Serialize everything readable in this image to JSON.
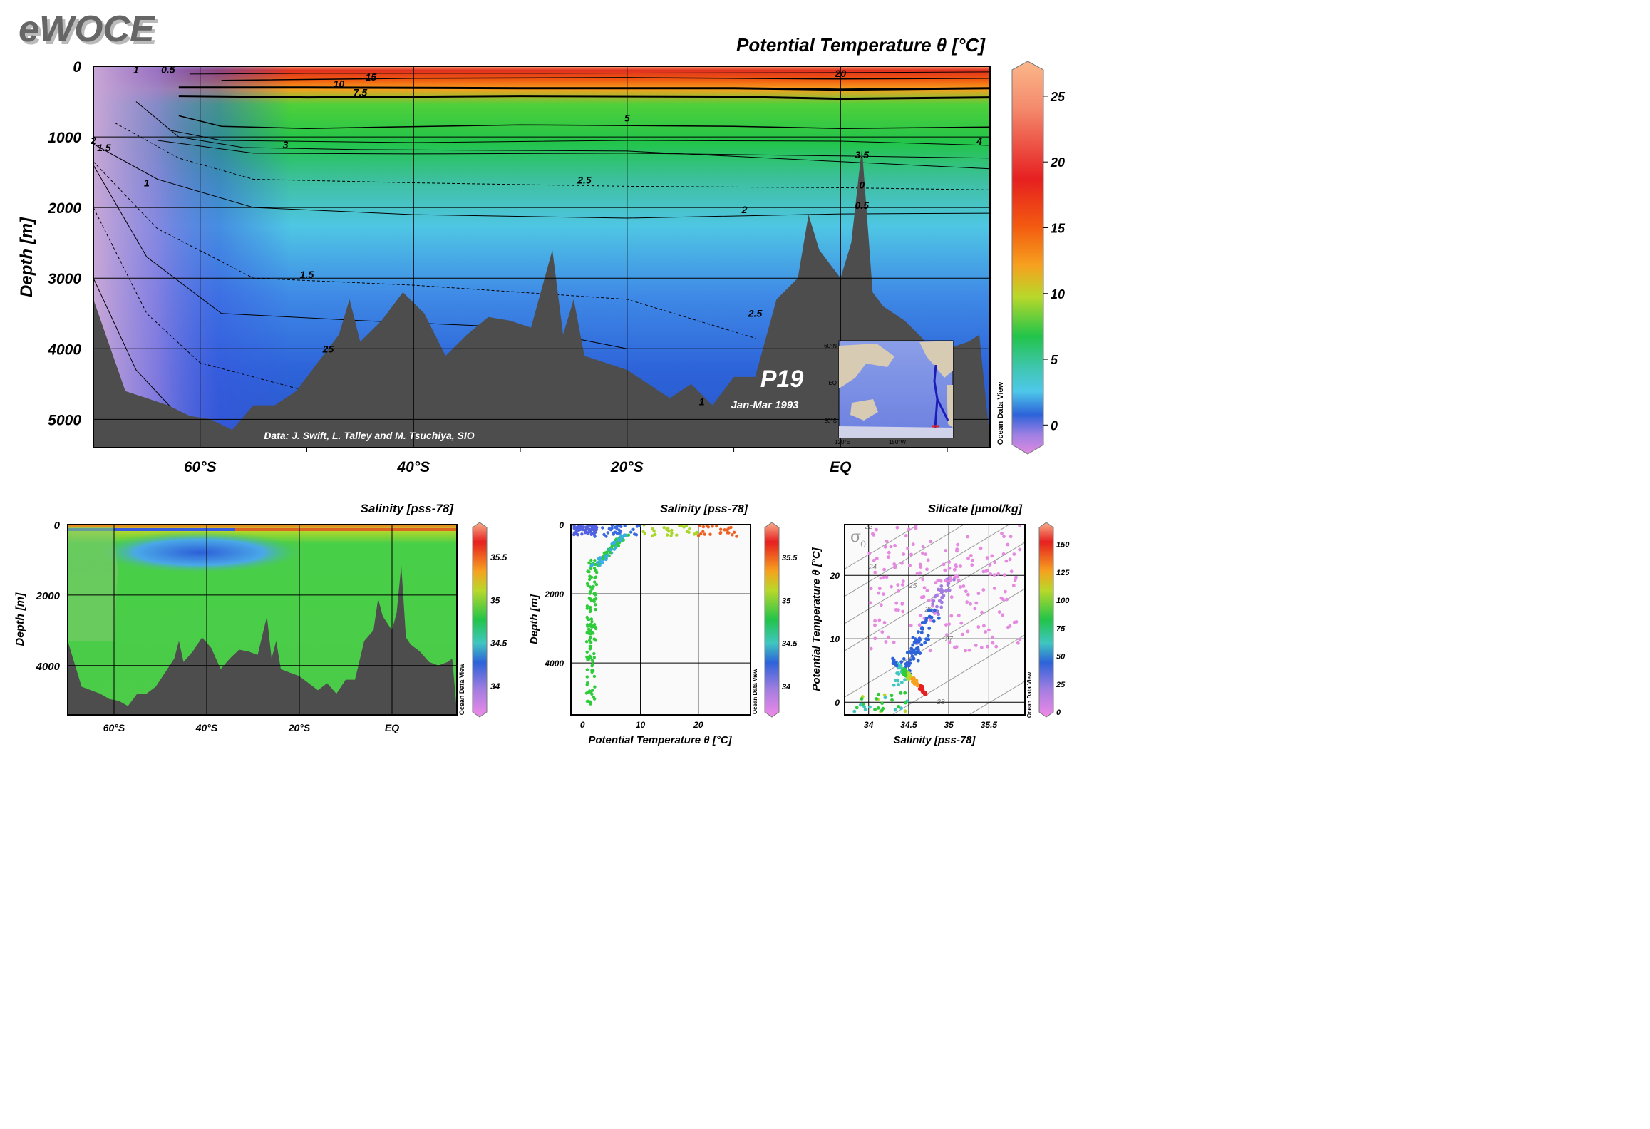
{
  "logo_text": "eWOCE",
  "colors": {
    "seafloor": "#4d4d4d",
    "panel_bg": "#fafafa",
    "frame": "#000000"
  },
  "main_section": {
    "title": "Potential Temperature θ [°C]",
    "ylabel": "Depth [m]",
    "y_ticks": [
      "0",
      "1000",
      "2000",
      "3000",
      "4000",
      "5000"
    ],
    "x_ticks": [
      "60°S",
      "40°S",
      "20°S",
      "EQ"
    ],
    "contour_labels": [
      "20",
      "15",
      "10",
      "7.5",
      "5",
      "4",
      "3.5",
      "3",
      "2.5",
      "2",
      "1.5",
      "1",
      "0.5",
      "0",
      "1.5",
      "2",
      "1",
      "2.5",
      "25",
      "1",
      "0.5"
    ],
    "station_label": "P19",
    "cruise_dates": "Jan-Mar 1993",
    "credit": "Data: J. Swift, L. Talley and M. Tsuchiya, SIO",
    "inset_map": {
      "lat_labels": [
        "60°N",
        "EQ",
        "60°S"
      ],
      "lon_labels": [
        "120°E",
        "150°W"
      ]
    },
    "colorbar_ticks": [
      "25",
      "20",
      "15",
      "10",
      "5",
      "0"
    ],
    "colorbar_caption": "Ocean Data View"
  },
  "salinity_section": {
    "title": "Salinity [pss-78]",
    "ylabel": "Depth [m]",
    "y_ticks": [
      "0",
      "2000",
      "4000"
    ],
    "x_ticks": [
      "60°S",
      "40°S",
      "20°S",
      "EQ"
    ],
    "colorbar_ticks": [
      "35.5",
      "35",
      "34.5",
      "34"
    ],
    "colorbar_caption": "Ocean Data View"
  },
  "scatter_temp_depth": {
    "title": "Salinity [pss-78]",
    "xlabel": "Potential Temperature θ [°C]",
    "ylabel": "Depth [m]",
    "x_ticks": [
      "0",
      "10",
      "20"
    ],
    "y_ticks": [
      "0",
      "2000",
      "4000"
    ],
    "colorbar_ticks": [
      "35.5",
      "35",
      "34.5",
      "34"
    ],
    "colorbar_caption": "Ocean Data View"
  },
  "scatter_ts": {
    "title": "Silicate [µmol/kg]",
    "xlabel": "Salinity [pss-78]",
    "ylabel": "Potential Temperature θ [°C]",
    "x_ticks": [
      "34",
      "34.5",
      "35",
      "35.5"
    ],
    "y_ticks": [
      "0",
      "10",
      "20"
    ],
    "sigma_label": "σ",
    "sigma_sub": "0",
    "density_labels": [
      "22",
      "23",
      "24",
      "25",
      "26",
      "27",
      "28"
    ],
    "colorbar_ticks": [
      "150",
      "125",
      "100",
      "75",
      "50",
      "25",
      "0"
    ],
    "colorbar_caption": "Ocean Data View"
  },
  "chart_data": [
    {
      "type": "heatmap",
      "title": "Potential Temperature θ [°C]",
      "xlabel": "",
      "ylabel": "Depth [m]",
      "xlim": [
        -70,
        14
      ],
      "ylim": [
        5400,
        0
      ],
      "colorbar_range": [
        -1.5,
        27
      ],
      "contour_levels": [
        0,
        0.5,
        1,
        1.5,
        2,
        2.5,
        3,
        3.5,
        4,
        5,
        7.5,
        10,
        15,
        20,
        25
      ],
      "bottom_depth": {
        "lat": [
          -70,
          -67,
          -65,
          -63,
          -61,
          -59,
          -57,
          -55,
          -53,
          -51,
          -49,
          -47,
          -46,
          -45,
          -43,
          -41,
          -39,
          -37,
          -35,
          -33,
          -31,
          -29,
          -27,
          -26,
          -25,
          -24,
          -22,
          -20,
          -18,
          -16,
          -14,
          -12,
          -10,
          -8,
          -6,
          -4,
          -3,
          -2,
          0,
          1,
          2,
          3,
          4,
          6,
          8,
          10,
          12,
          13,
          14
        ],
        "depth": [
          3300,
          4600,
          4700,
          4800,
          4950,
          5000,
          5150,
          4800,
          4800,
          4600,
          4200,
          3800,
          3300,
          3900,
          3600,
          3200,
          3500,
          4100,
          3800,
          3550,
          3600,
          3700,
          2600,
          3800,
          3300,
          4100,
          4200,
          4300,
          4500,
          4700,
          4500,
          4800,
          4400,
          4400,
          3300,
          3000,
          2100,
          2600,
          3000,
          2500,
          1150,
          3200,
          3400,
          3600,
          3900,
          4000,
          3900,
          3800,
          5300
        ]
      }
    },
    {
      "type": "heatmap",
      "title": "Salinity [pss-78]",
      "ylabel": "Depth [m]",
      "xlim": [
        -70,
        14
      ],
      "ylim": [
        5400,
        0
      ],
      "colorbar_range": [
        33.7,
        35.8
      ]
    },
    {
      "type": "scatter",
      "title": "Salinity [pss-78]",
      "xlabel": "Potential Temperature θ [°C]",
      "ylabel": "Depth [m]",
      "xlim": [
        -2,
        29
      ],
      "ylim": [
        5500,
        0
      ],
      "color_variable_range": [
        33.7,
        35.8
      ]
    },
    {
      "type": "scatter",
      "title": "Silicate [µmol/kg]",
      "xlabel": "Salinity [pss-78]",
      "ylabel": "Potential Temperature θ [°C]",
      "xlim": [
        33.7,
        35.95
      ],
      "ylim": [
        -2,
        28
      ],
      "color_variable_range": [
        0,
        165
      ]
    }
  ]
}
